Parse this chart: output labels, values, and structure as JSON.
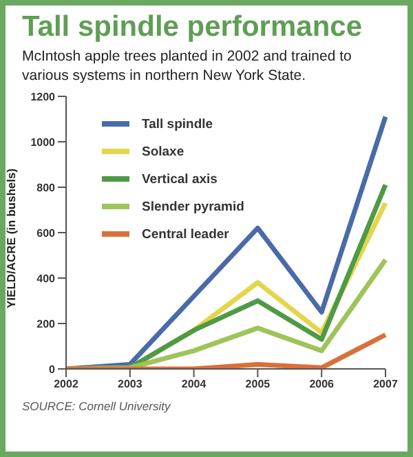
{
  "chart_data": {
    "type": "line",
    "title": "Tall spindle performance",
    "subtitle": "McIntosh apple trees planted in 2002 and trained to various systems in northern New York State.",
    "ylabel": "YIELD/ACRE (in bushels)",
    "annotations": [
      "SOURCE: Cornell University"
    ],
    "categories": [
      "2002",
      "2003",
      "2004",
      "2005",
      "2006",
      "2007"
    ],
    "series": [
      {
        "name": "Tall spindle",
        "color": "#4a6aa8",
        "values": [
          0,
          20,
          320,
          620,
          250,
          1110
        ]
      },
      {
        "name": "Solaxe",
        "color": "#e3d64c",
        "values": [
          0,
          5,
          170,
          380,
          160,
          730
        ]
      },
      {
        "name": "Vertical axis",
        "color": "#4e9a45",
        "values": [
          0,
          5,
          170,
          300,
          130,
          810
        ]
      },
      {
        "name": "Slender pyramid",
        "color": "#9ec45a",
        "values": [
          0,
          5,
          80,
          180,
          80,
          480
        ]
      },
      {
        "name": "Central leader",
        "color": "#d9703a",
        "values": [
          0,
          0,
          0,
          20,
          5,
          150
        ]
      }
    ],
    "ylim": [
      0,
      1200
    ],
    "yticks": [
      0,
      200,
      400,
      600,
      800,
      1000,
      1200
    ],
    "grid": false,
    "legend": "top left",
    "marker": "none",
    "line_style": "solid"
  }
}
